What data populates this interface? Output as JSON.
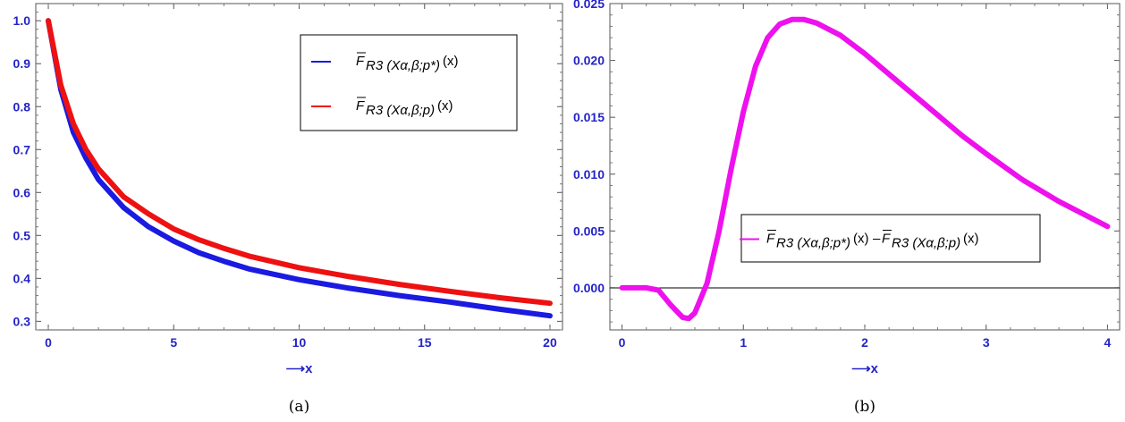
{
  "chart_data": [
    {
      "type": "line",
      "caption": "(a)",
      "xlabel": "⟶x",
      "ylabel": "",
      "xlim": [
        -0.5,
        20.5
      ],
      "ylim": [
        0.28,
        1.04
      ],
      "xticks": [
        "0",
        "5",
        "10",
        "15",
        "20"
      ],
      "yticks": [
        "0.3",
        "0.4",
        "0.5",
        "0.6",
        "0.7",
        "0.8",
        "0.9",
        "1.0"
      ],
      "legend_position": "top-right",
      "series": [
        {
          "name": "F̅R3(Xα,β;p*)(x)",
          "color": "#1a1ae0",
          "x": [
            0,
            0.5,
            1,
            1.5,
            2,
            3,
            4,
            5,
            6,
            7,
            8,
            10,
            12,
            14,
            16,
            18,
            20
          ],
          "y": [
            1.0,
            0.84,
            0.74,
            0.68,
            0.63,
            0.565,
            0.52,
            0.487,
            0.46,
            0.44,
            0.422,
            0.397,
            0.377,
            0.36,
            0.345,
            0.328,
            0.313
          ]
        },
        {
          "name": "F̅R3(Xα,β;p)(x)",
          "color": "#ee1111",
          "x": [
            0,
            0.5,
            1,
            1.5,
            2,
            3,
            4,
            5,
            6,
            7,
            8,
            10,
            12,
            14,
            16,
            18,
            20
          ],
          "y": [
            1.0,
            0.85,
            0.76,
            0.7,
            0.655,
            0.59,
            0.55,
            0.515,
            0.49,
            0.47,
            0.452,
            0.425,
            0.404,
            0.386,
            0.37,
            0.355,
            0.342
          ]
        }
      ]
    },
    {
      "type": "line",
      "caption": "(b)",
      "xlabel": "⟶x",
      "ylabel": "",
      "xlim": [
        -0.1,
        4.1
      ],
      "ylim": [
        -0.0037,
        0.025
      ],
      "xticks": [
        "0",
        "1",
        "2",
        "3",
        "4"
      ],
      "yticks": [
        "0.000",
        "0.005",
        "0.010",
        "0.015",
        "0.020",
        "0.025"
      ],
      "legend_position": "center-right",
      "series": [
        {
          "name": "F̅R3(Xα,β;p*)(x)–F̅R3(Xα,β;p)(x)",
          "color": "#ee11ee",
          "x": [
            0,
            0.2,
            0.3,
            0.4,
            0.5,
            0.55,
            0.6,
            0.7,
            0.8,
            0.9,
            1.0,
            1.1,
            1.2,
            1.3,
            1.4,
            1.5,
            1.6,
            1.8,
            2.0,
            2.2,
            2.5,
            2.8,
            3.0,
            3.3,
            3.6,
            4.0
          ],
          "y": [
            0.0,
            0.0,
            -0.0002,
            -0.0015,
            -0.0026,
            -0.0027,
            -0.0022,
            0.0004,
            0.005,
            0.0105,
            0.0155,
            0.0195,
            0.022,
            0.0232,
            0.0236,
            0.0236,
            0.0233,
            0.0222,
            0.0206,
            0.0188,
            0.0161,
            0.0134,
            0.0118,
            0.0095,
            0.0076,
            0.0054
          ]
        }
      ],
      "reference_line": 0
    }
  ]
}
